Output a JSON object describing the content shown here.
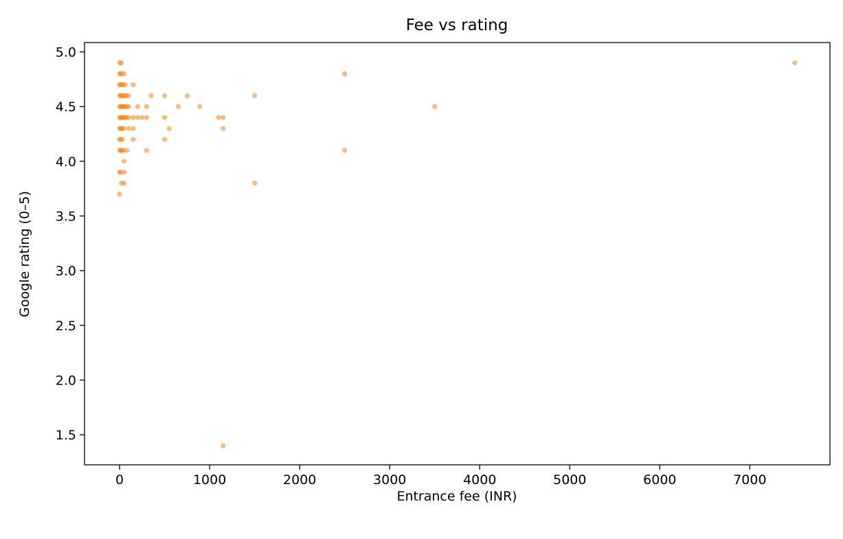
{
  "chart_data": {
    "type": "scatter",
    "title": "Fee vs rating",
    "xlabel": "Entrance fee (INR)",
    "ylabel": "Google rating (0–5)",
    "xlim": [
      -390,
      7890
    ],
    "ylim": [
      1.225,
      5.085
    ],
    "x_ticks": [
      0,
      1000,
      2000,
      3000,
      4000,
      5000,
      6000,
      7000
    ],
    "y_ticks": [
      1.5,
      2.0,
      2.5,
      3.0,
      3.5,
      4.0,
      4.5,
      5.0
    ],
    "x_tick_labels": [
      "0",
      "1000",
      "2000",
      "3000",
      "4000",
      "5000",
      "6000",
      "7000"
    ],
    "y_tick_labels": [
      "1.5",
      "2.0",
      "2.5",
      "3.0",
      "3.5",
      "4.0",
      "4.5",
      "5.0"
    ],
    "grid": false,
    "marker_color": "#f28e2b",
    "marker_opacity": 0.6,
    "points": [
      [
        0,
        4.9
      ],
      [
        20,
        4.9
      ],
      [
        0,
        4.8
      ],
      [
        10,
        4.8
      ],
      [
        20,
        4.8
      ],
      [
        50,
        4.8
      ],
      [
        2500,
        4.8
      ],
      [
        0,
        4.7
      ],
      [
        10,
        4.7
      ],
      [
        25,
        4.7
      ],
      [
        40,
        4.7
      ],
      [
        60,
        4.7
      ],
      [
        150,
        4.7
      ],
      [
        0,
        4.6
      ],
      [
        10,
        4.6
      ],
      [
        20,
        4.6
      ],
      [
        30,
        4.6
      ],
      [
        40,
        4.6
      ],
      [
        50,
        4.6
      ],
      [
        60,
        4.6
      ],
      [
        75,
        4.6
      ],
      [
        100,
        4.6
      ],
      [
        350,
        4.6
      ],
      [
        500,
        4.6
      ],
      [
        750,
        4.6
      ],
      [
        1500,
        4.6
      ],
      [
        0,
        4.5
      ],
      [
        10,
        4.5
      ],
      [
        20,
        4.5
      ],
      [
        30,
        4.5
      ],
      [
        40,
        4.5
      ],
      [
        50,
        4.5
      ],
      [
        60,
        4.5
      ],
      [
        80,
        4.5
      ],
      [
        100,
        4.5
      ],
      [
        200,
        4.5
      ],
      [
        300,
        4.5
      ],
      [
        650,
        4.5
      ],
      [
        890,
        4.5
      ],
      [
        3500,
        4.5
      ],
      [
        0,
        4.4
      ],
      [
        10,
        4.4
      ],
      [
        20,
        4.4
      ],
      [
        30,
        4.4
      ],
      [
        40,
        4.4
      ],
      [
        50,
        4.4
      ],
      [
        60,
        4.4
      ],
      [
        75,
        4.4
      ],
      [
        100,
        4.4
      ],
      [
        150,
        4.4
      ],
      [
        200,
        4.4
      ],
      [
        250,
        4.4
      ],
      [
        300,
        4.4
      ],
      [
        500,
        4.4
      ],
      [
        1100,
        4.4
      ],
      [
        1150,
        4.4
      ],
      [
        0,
        4.3
      ],
      [
        10,
        4.3
      ],
      [
        20,
        4.3
      ],
      [
        30,
        4.3
      ],
      [
        50,
        4.3
      ],
      [
        100,
        4.3
      ],
      [
        150,
        4.3
      ],
      [
        550,
        4.3
      ],
      [
        1150,
        4.3
      ],
      [
        0,
        4.2
      ],
      [
        10,
        4.2
      ],
      [
        30,
        4.2
      ],
      [
        150,
        4.2
      ],
      [
        500,
        4.2
      ],
      [
        0,
        4.1
      ],
      [
        10,
        4.1
      ],
      [
        20,
        4.1
      ],
      [
        30,
        4.1
      ],
      [
        40,
        4.1
      ],
      [
        80,
        4.1
      ],
      [
        300,
        4.1
      ],
      [
        2500,
        4.1
      ],
      [
        50,
        4.0
      ],
      [
        0,
        3.9
      ],
      [
        10,
        3.9
      ],
      [
        50,
        3.9
      ],
      [
        20,
        3.8
      ],
      [
        50,
        3.8
      ],
      [
        1500,
        3.8
      ],
      [
        0,
        3.7
      ],
      [
        1150,
        1.4
      ],
      [
        7500,
        4.9
      ]
    ]
  }
}
